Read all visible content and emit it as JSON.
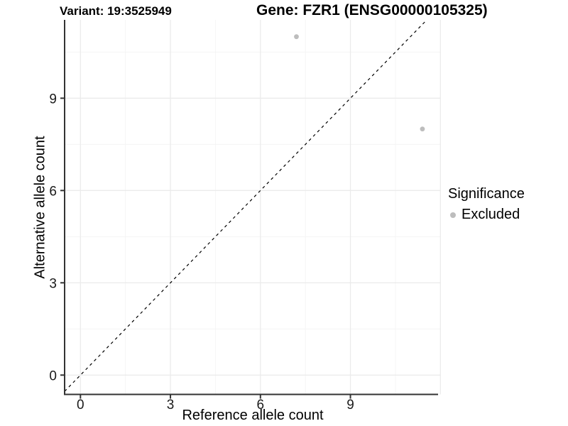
{
  "chart_data": {
    "type": "scatter",
    "titles": {
      "variant": "Variant: 19:3525949",
      "gene": "Gene: FZR1 (ENSG00000105325)"
    },
    "xlabel": "Reference allele count",
    "ylabel": "Alternative allele count",
    "x_ticks": [
      0,
      3,
      6,
      9
    ],
    "y_ticks": [
      0,
      3,
      6,
      9
    ],
    "x_minor_gridlines": [
      1.5,
      4.5,
      7.5,
      10.5
    ],
    "y_minor_gridlines": [
      1.5,
      4.5,
      7.5,
      10.5
    ],
    "x_extra_major_gridlines": [
      12
    ],
    "xlim": [
      -0.53,
      12.02
    ],
    "ylim": [
      -0.63,
      11.55
    ],
    "grid": true,
    "points": [
      {
        "x": 7.2,
        "y": 11,
        "significance": "Excluded"
      },
      {
        "x": 11.4,
        "y": 8,
        "significance": "Excluded"
      }
    ],
    "identity_line": {
      "style": "dashed",
      "slope": 1,
      "intercept": 0,
      "color": "#000000"
    },
    "legend": {
      "title": "Significance",
      "position": "right",
      "items": [
        {
          "label": "Excluded",
          "color": "#bdbdbd"
        }
      ]
    },
    "colors": {
      "point": "#bdbdbd",
      "grid_major": "#ebebeb",
      "grid_minor": "#f4f4f4",
      "axis": "#333333",
      "tick_text": "#1a1a1a",
      "background": "#ffffff"
    }
  }
}
